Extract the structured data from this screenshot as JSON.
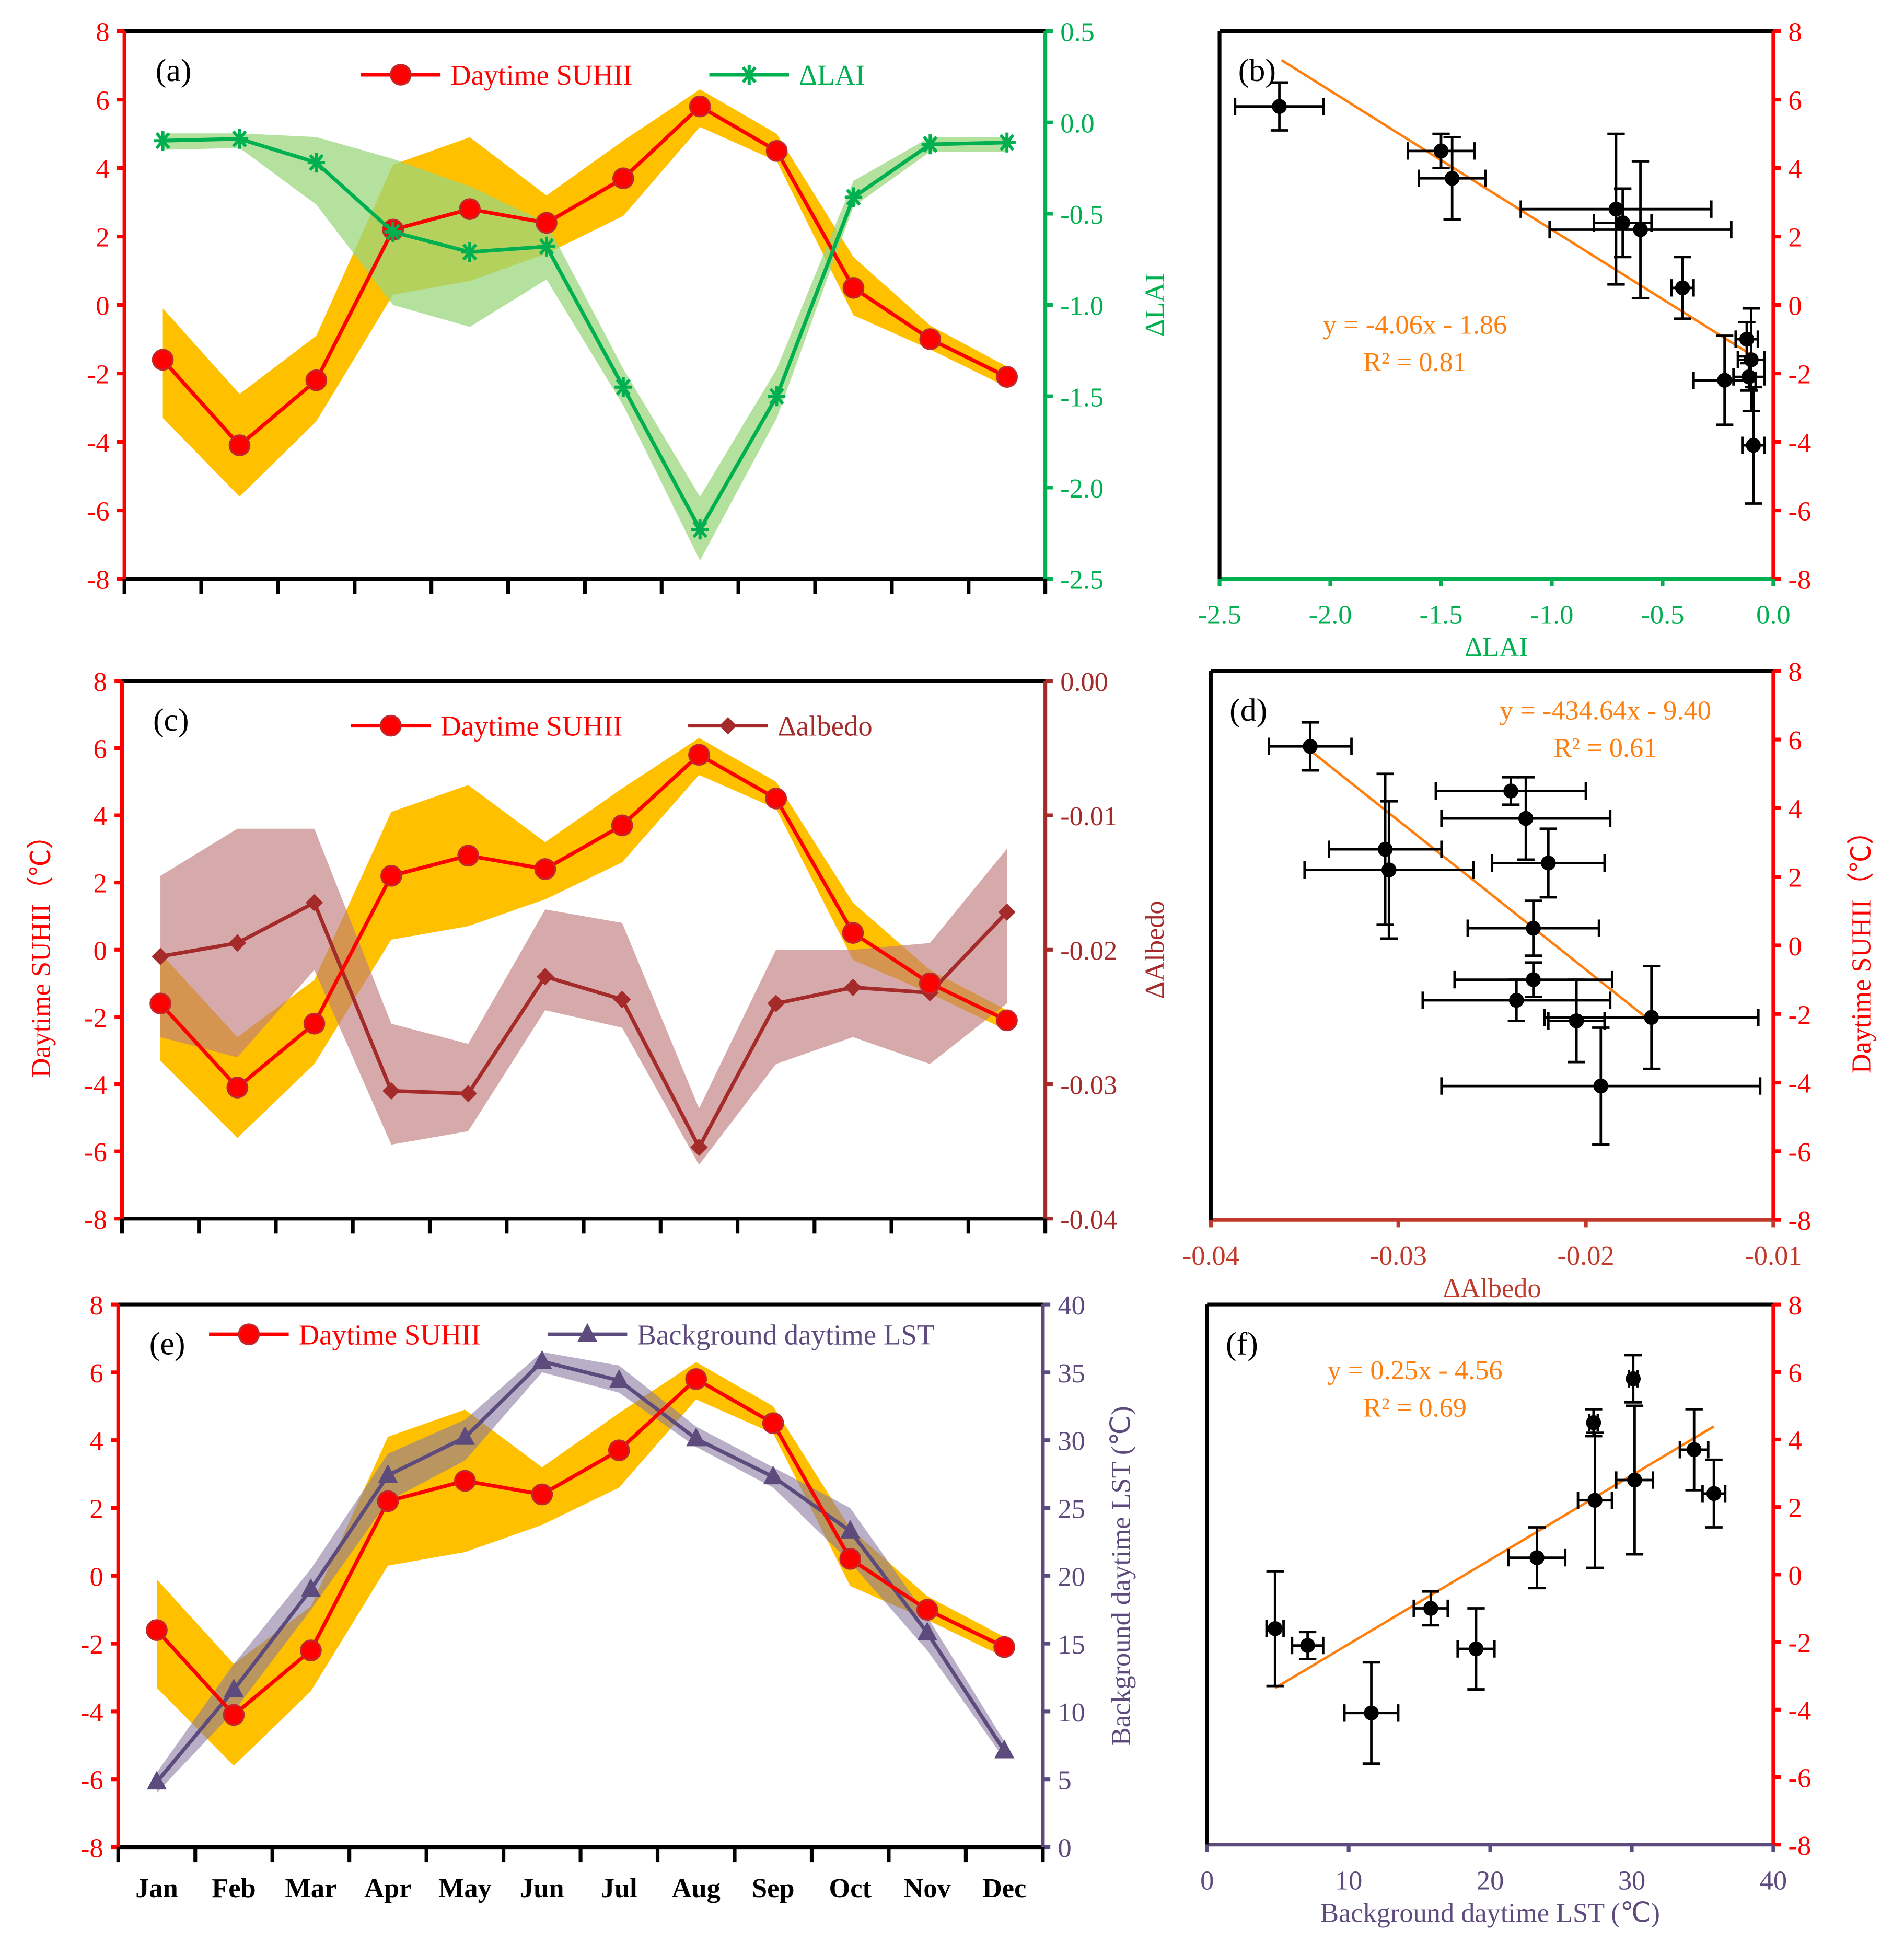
{
  "months": [
    "Jan",
    "Feb",
    "Mar",
    "Apr",
    "May",
    "Jun",
    "Jul",
    "Aug",
    "Sep",
    "Oct",
    "Nov",
    "Dec"
  ],
  "colors": {
    "suhii": "#FF0000",
    "suhii_band": "#FFC000",
    "lai": "#00B050",
    "lai_band": "#9BD77E",
    "albedo": "#A52A2A",
    "albedo_band": "#C07C7C",
    "lst": "#5E4B7E",
    "lst_band": "#8A7AA0",
    "fit": "#FF7F0E"
  },
  "chart_data": [
    {
      "panel": "(a)",
      "type": "line",
      "categories": [
        "Jan",
        "Feb",
        "Mar",
        "Apr",
        "May",
        "Jun",
        "Jul",
        "Aug",
        "Sep",
        "Oct",
        "Nov",
        "Dec"
      ],
      "series": [
        {
          "name": "Daytime SUHII",
          "axis": "left",
          "values": [
            -1.6,
            -4.1,
            -2.2,
            2.2,
            2.8,
            2.4,
            3.7,
            5.8,
            4.5,
            0.5,
            -1.0,
            -2.1
          ],
          "lower": [
            -3.3,
            -5.6,
            -3.4,
            0.3,
            0.7,
            1.5,
            2.6,
            5.2,
            4.2,
            -0.3,
            -1.3,
            -2.4
          ],
          "upper": [
            -0.1,
            -2.6,
            -0.9,
            4.1,
            4.9,
            3.2,
            4.8,
            6.3,
            5.0,
            1.4,
            -0.6,
            -1.8
          ]
        },
        {
          "name": "ΔLAI",
          "axis": "right",
          "values": [
            -0.1,
            -0.09,
            -0.22,
            -0.6,
            -0.71,
            -0.68,
            -1.45,
            -2.23,
            -1.5,
            -0.41,
            -0.12,
            -0.11
          ],
          "lower": [
            -0.15,
            -0.14,
            -0.45,
            -1.0,
            -1.12,
            -0.86,
            -1.55,
            -2.4,
            -1.62,
            -0.46,
            -0.16,
            -0.16
          ],
          "upper": [
            -0.06,
            -0.06,
            -0.08,
            -0.2,
            -0.35,
            -0.55,
            -1.35,
            -2.05,
            -1.35,
            -0.32,
            -0.08,
            -0.08
          ]
        }
      ],
      "ylim": [
        -8,
        8
      ],
      "yticks": [
        "8",
        "6",
        "4",
        "2",
        "0",
        "-2",
        "-4",
        "-6",
        "-8"
      ],
      "y2lim": [
        -2.5,
        0.5
      ],
      "y2ticks": [
        "0.5",
        "0.0",
        "-0.5",
        "-1.0",
        "-1.5",
        "-2.0",
        "-2.5"
      ],
      "y2label": "ΔLAI"
    },
    {
      "panel": "(b)",
      "type": "scatter",
      "xlim": [
        -2.5,
        0
      ],
      "ylim": [
        -8,
        8
      ],
      "xticks": [
        "-2.5",
        "-2.0",
        "-1.5",
        "-1.0",
        "-0.5",
        "0.0"
      ],
      "yticks": [
        "8",
        "6",
        "4",
        "2",
        "0",
        "-2",
        "-4",
        "-6",
        "-8"
      ],
      "xlabel": "ΔLAI",
      "x": [
        -0.1,
        -0.09,
        -0.22,
        -0.6,
        -0.71,
        -0.68,
        -1.45,
        -2.23,
        -1.5,
        -0.41,
        -0.12,
        -0.11
      ],
      "y": [
        -1.6,
        -4.1,
        -2.2,
        2.2,
        2.8,
        2.4,
        3.7,
        5.8,
        4.5,
        0.5,
        -1.0,
        -2.1
      ],
      "xerr": [
        0.06,
        0.05,
        0.14,
        0.41,
        0.43,
        0.13,
        0.15,
        0.2,
        0.15,
        0.05,
        0.05,
        0.07
      ],
      "yerr": [
        1.5,
        1.7,
        1.3,
        2.0,
        2.2,
        1.0,
        1.2,
        0.7,
        0.5,
        0.9,
        0.5,
        0.4
      ],
      "fit": {
        "slope": -4.06,
        "intercept": -1.86,
        "xrange": [
          -2.22,
          -0.08
        ],
        "equation": "y = -4.06x - 1.86",
        "r2": "R² = 0.81"
      }
    },
    {
      "panel": "(c)",
      "type": "line",
      "categories": [
        "Jan",
        "Feb",
        "Mar",
        "Apr",
        "May",
        "Jun",
        "Jul",
        "Aug",
        "Sep",
        "Oct",
        "Nov",
        "Dec"
      ],
      "series": [
        {
          "name": "Daytime SUHII",
          "axis": "left",
          "values": [
            -1.6,
            -4.1,
            -2.2,
            2.2,
            2.8,
            2.4,
            3.7,
            5.8,
            4.5,
            0.5,
            -1.0,
            -2.1
          ],
          "lower": [
            -3.3,
            -5.6,
            -3.4,
            0.3,
            0.7,
            1.5,
            2.6,
            5.2,
            4.2,
            -0.3,
            -1.3,
            -2.4
          ],
          "upper": [
            -0.1,
            -2.6,
            -0.9,
            4.1,
            4.9,
            3.2,
            4.8,
            6.3,
            5.0,
            1.4,
            -0.6,
            -1.8
          ]
        },
        {
          "name": "Δalbedo",
          "axis": "right",
          "values": [
            -0.0205,
            -0.0195,
            -0.0165,
            -0.0305,
            -0.0307,
            -0.022,
            -0.0237,
            -0.0347,
            -0.024,
            -0.0228,
            -0.0232,
            -0.0172
          ],
          "lower": [
            -0.0265,
            -0.028,
            -0.0215,
            -0.0345,
            -0.0335,
            -0.0245,
            -0.0258,
            -0.036,
            -0.0285,
            -0.0265,
            -0.0285,
            -0.024
          ],
          "upper": [
            -0.0145,
            -0.011,
            -0.011,
            -0.0255,
            -0.027,
            -0.017,
            -0.018,
            -0.0318,
            -0.02,
            -0.02,
            -0.0195,
            -0.0125
          ]
        }
      ],
      "ylim": [
        -8,
        8
      ],
      "yticks": [
        "8",
        "6",
        "4",
        "2",
        "0",
        "-2",
        "-4",
        "-6",
        "-8"
      ],
      "ylabel": "Daytime SUHII（℃）",
      "y2lim": [
        -0.04,
        0
      ],
      "y2ticks": [
        "0.00",
        "-0.01",
        "-0.02",
        "-0.03",
        "-0.04"
      ],
      "y2label": "ΔAlbedo"
    },
    {
      "panel": "(d)",
      "type": "scatter",
      "xlim": [
        -0.04,
        -0.01
      ],
      "ylim": [
        -8,
        8
      ],
      "xticks": [
        "-0.04",
        "-0.03",
        "-0.02",
        "-0.01"
      ],
      "yticks": [
        "8",
        "6",
        "4",
        "2",
        "0",
        "-2",
        "-4",
        "-6",
        "-8"
      ],
      "xlabel": "ΔAlbedo",
      "ylabel": "Daytime SUHII（℃）",
      "x": [
        -0.0237,
        -0.0192,
        -0.0205,
        -0.022,
        -0.0307,
        -0.0305,
        -0.0228,
        -0.0347,
        -0.024,
        -0.0228,
        -0.0232,
        -0.0165
      ],
      "y": [
        -1.6,
        -4.1,
        -2.2,
        2.4,
        2.8,
        2.2,
        0.5,
        5.8,
        4.5,
        -1.0,
        3.7,
        -2.1
      ],
      "xerr": [
        0.005,
        0.0085,
        0.0015,
        0.003,
        0.003,
        0.0045,
        0.0035,
        0.0022,
        0.004,
        0.0042,
        0.0045,
        0.0057
      ],
      "yerr": [
        0.6,
        1.7,
        1.2,
        1.0,
        2.2,
        2.0,
        0.8,
        0.7,
        0.4,
        0.5,
        1.2,
        1.5
      ],
      "fit": {
        "slope": -434.64,
        "intercept": -9.4,
        "xrange": [
          -0.0347,
          -0.0165
        ],
        "equation": "y = -434.64x - 9.40",
        "r2": "R² = 0.61"
      }
    },
    {
      "panel": "(e)",
      "type": "line",
      "categories": [
        "Jan",
        "Feb",
        "Mar",
        "Apr",
        "May",
        "Jun",
        "Jul",
        "Aug",
        "Sep",
        "Oct",
        "Nov",
        "Dec"
      ],
      "series": [
        {
          "name": "Daytime SUHII",
          "axis": "left",
          "values": [
            -1.6,
            -4.1,
            -2.2,
            2.2,
            2.8,
            2.4,
            3.7,
            5.8,
            4.5,
            0.5,
            -1.0,
            -2.1
          ],
          "lower": [
            -3.3,
            -5.6,
            -3.4,
            0.3,
            0.7,
            1.5,
            2.6,
            5.2,
            4.2,
            -0.3,
            -1.3,
            -2.4
          ],
          "upper": [
            -0.1,
            -2.6,
            -0.9,
            4.1,
            4.9,
            3.2,
            4.8,
            6.3,
            5.0,
            1.4,
            -0.6,
            -1.8
          ]
        },
        {
          "name": "Background daytime LST",
          "axis": "right",
          "values": [
            4.8,
            11.6,
            19.0,
            27.4,
            30.2,
            35.8,
            34.4,
            30.1,
            27.3,
            23.3,
            15.8,
            7.1
          ],
          "lower": [
            4.0,
            10.0,
            17.5,
            25.5,
            28.5,
            35.0,
            33.5,
            29.5,
            26.5,
            21.0,
            14.5,
            6.5
          ],
          "upper": [
            5.5,
            13.5,
            20.5,
            29.0,
            31.5,
            36.5,
            35.5,
            31.0,
            28.0,
            25.0,
            17.0,
            7.8
          ]
        }
      ],
      "ylim": [
        -8,
        8
      ],
      "yticks": [
        "8",
        "6",
        "4",
        "2",
        "0",
        "-2",
        "-4",
        "-6",
        "-8"
      ],
      "y2lim": [
        0,
        40
      ],
      "y2ticks": [
        "40",
        "35",
        "30",
        "25",
        "20",
        "15",
        "10",
        "5",
        "0"
      ],
      "y2label": "Background daytime  LST (℃)"
    },
    {
      "panel": "(f)",
      "type": "scatter",
      "xlim": [
        0,
        40
      ],
      "ylim": [
        -8,
        8
      ],
      "xticks": [
        "0",
        "10",
        "20",
        "30",
        "40"
      ],
      "yticks": [
        "8",
        "6",
        "4",
        "2",
        "0",
        "-2",
        "-4",
        "-6",
        "-8"
      ],
      "xlabel": "Background  daytime LST (℃)",
      "x": [
        4.8,
        11.6,
        19.0,
        27.4,
        30.2,
        35.8,
        34.4,
        30.1,
        27.3,
        23.3,
        15.8,
        7.1
      ],
      "y": [
        -1.6,
        -4.1,
        -2.2,
        2.2,
        2.8,
        2.4,
        3.7,
        5.8,
        4.5,
        0.5,
        -1.0,
        -2.1
      ],
      "xerr": [
        0.6,
        1.9,
        1.3,
        1.2,
        1.3,
        0.8,
        1.0,
        0.3,
        0.3,
        2.0,
        1.2,
        1.1
      ],
      "yerr": [
        1.7,
        1.5,
        1.2,
        2.0,
        2.2,
        1.0,
        1.2,
        0.7,
        0.4,
        0.9,
        0.5,
        0.4
      ],
      "fit": {
        "slope": 0.25,
        "intercept": -4.56,
        "xrange": [
          4.8,
          35.8
        ],
        "equation": "y = 0.25x - 4.56",
        "r2": "R² = 0.69"
      }
    }
  ]
}
